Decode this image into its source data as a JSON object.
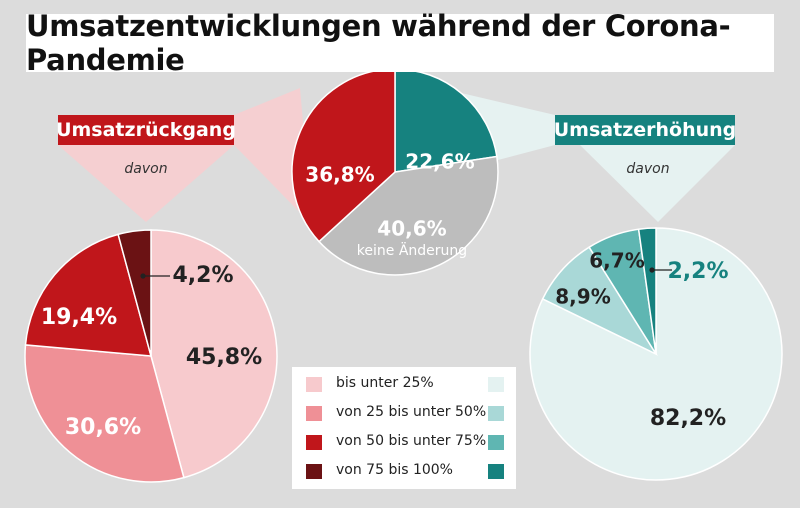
{
  "title": "Umsatzentwicklungen während der Corona-Pandemie",
  "labels": {
    "decline": "Umsatzrückgang",
    "increase": "Umsatzerhöhung",
    "davon": "davon"
  },
  "colors": {
    "background": "#dcdcdc",
    "decline_accent": "#c0161b",
    "increase_accent": "#16827f",
    "neutral": "#bdbdbd"
  },
  "chart_data": [
    {
      "type": "pie",
      "id": "overall",
      "slices": [
        {
          "label": "",
          "value": 22.6,
          "display": "22,6%",
          "color": "#16827f"
        },
        {
          "label": "keine Änderung",
          "value": 40.6,
          "display": "40,6%",
          "color": "#bdbdbd"
        },
        {
          "label": "",
          "value": 36.8,
          "display": "36,8%",
          "color": "#c0161b"
        }
      ]
    },
    {
      "type": "pie",
      "id": "decline",
      "title": "Umsatzrückgang",
      "slices": [
        {
          "label": "bis unter 25%",
          "value": 45.8,
          "display": "45,8%",
          "color": "#f7cacd"
        },
        {
          "label": "von 25 bis unter 50%",
          "value": 30.6,
          "display": "30,6%",
          "color": "#ef9096"
        },
        {
          "label": "von 50 bis unter 75%",
          "value": 19.4,
          "display": "19,4%",
          "color": "#c0161b"
        },
        {
          "label": "von 75 bis 100%",
          "value": 4.2,
          "display": "4,2%",
          "color": "#6b1214"
        }
      ]
    },
    {
      "type": "pie",
      "id": "increase",
      "title": "Umsatzerhöhung",
      "slices": [
        {
          "label": "bis unter 25%",
          "value": 82.2,
          "display": "82,2%",
          "color": "#e4f2f1"
        },
        {
          "label": "von 25 bis unter 50%",
          "value": 8.9,
          "display": "8,9%",
          "color": "#a9d8d7"
        },
        {
          "label": "von 50 bis unter 75%",
          "value": 6.7,
          "display": "6,7%",
          "color": "#5fb6b2"
        },
        {
          "label": "von 75 bis 100%",
          "value": 2.2,
          "display": "2,2%",
          "color": "#16827f"
        }
      ]
    }
  ],
  "legend": [
    {
      "label": "bis unter 25%",
      "color_decline": "#f7cacd",
      "color_increase": "#e4f2f1"
    },
    {
      "label": "von 25 bis unter 50%",
      "color_decline": "#ef9096",
      "color_increase": "#a9d8d7"
    },
    {
      "label": "von 50 bis unter 75%",
      "color_decline": "#c0161b",
      "color_increase": "#5fb6b2"
    },
    {
      "label": "von 75 bis 100%",
      "color_decline": "#6b1214",
      "color_increase": "#16827f"
    }
  ]
}
